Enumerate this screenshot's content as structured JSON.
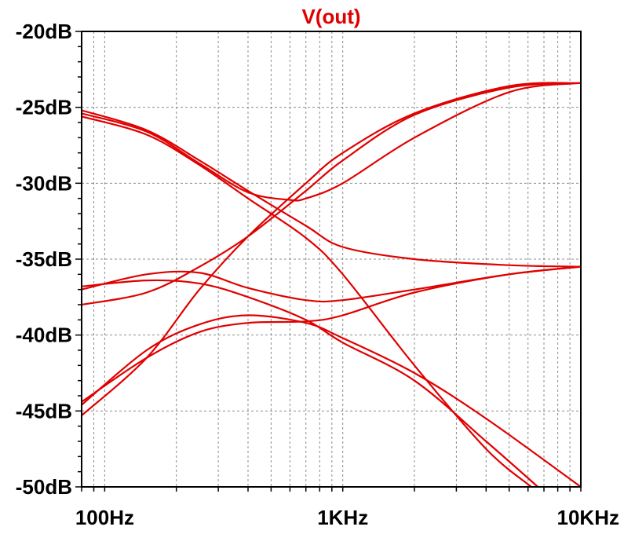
{
  "chart_data": {
    "type": "line",
    "title": "V(out)",
    "xlabel": "",
    "ylabel": "",
    "x_scale": "log",
    "xlim": [
      80,
      10000
    ],
    "ylim": [
      -50,
      -20
    ],
    "grid": true,
    "x_tick_labels": [
      {
        "value": 100,
        "label": "100Hz"
      },
      {
        "value": 1000,
        "label": "1KHz"
      },
      {
        "value": 10000,
        "label": "10KHz"
      }
    ],
    "y_tick_labels": [
      {
        "value": -20,
        "label": "-20dB"
      },
      {
        "value": -25,
        "label": "-25dB"
      },
      {
        "value": -30,
        "label": "-30dB"
      },
      {
        "value": -35,
        "label": "-35dB"
      },
      {
        "value": -40,
        "label": "-40dB"
      },
      {
        "value": -45,
        "label": "-45dB"
      },
      {
        "value": -50,
        "label": "-50dB"
      }
    ],
    "line_color": "#e00000",
    "title_color": "#e00000",
    "series": [
      {
        "points": [
          [
            80,
            -25.2
          ],
          [
            150,
            -26.5
          ],
          [
            250,
            -28.5
          ],
          [
            400,
            -30.5
          ],
          [
            700,
            -32.8
          ],
          [
            1000,
            -34.2
          ],
          [
            2000,
            -35.0
          ],
          [
            5000,
            -35.4
          ],
          [
            10000,
            -35.5
          ]
        ]
      },
      {
        "points": [
          [
            80,
            -25.4
          ],
          [
            150,
            -26.6
          ],
          [
            250,
            -28.7
          ],
          [
            400,
            -30.6
          ],
          [
            600,
            -31.1
          ],
          [
            700,
            -31.0
          ],
          [
            1000,
            -30.0
          ],
          [
            2000,
            -27.0
          ],
          [
            5000,
            -24.0
          ],
          [
            10000,
            -23.4
          ]
        ]
      },
      {
        "points": [
          [
            80,
            -25.6
          ],
          [
            150,
            -26.8
          ],
          [
            250,
            -28.8
          ],
          [
            400,
            -31.0
          ],
          [
            700,
            -33.6
          ],
          [
            1000,
            -36.0
          ],
          [
            2000,
            -42.0
          ],
          [
            4000,
            -47.5
          ],
          [
            6200,
            -50.0
          ]
        ]
      },
      {
        "points": [
          [
            80,
            -37.0
          ],
          [
            150,
            -36.0
          ],
          [
            250,
            -35.9
          ],
          [
            400,
            -36.9
          ],
          [
            700,
            -37.7
          ],
          [
            1000,
            -37.7
          ],
          [
            2000,
            -37.0
          ],
          [
            5000,
            -36.0
          ],
          [
            10000,
            -35.5
          ]
        ]
      },
      {
        "points": [
          [
            80,
            -36.8
          ],
          [
            150,
            -36.4
          ],
          [
            250,
            -36.6
          ],
          [
            400,
            -37.5
          ],
          [
            700,
            -39.0
          ],
          [
            1000,
            -40.5
          ],
          [
            2000,
            -43.0
          ],
          [
            4000,
            -47.0
          ],
          [
            6600,
            -50.0
          ]
        ]
      },
      {
        "points": [
          [
            80,
            -38.0
          ],
          [
            150,
            -37.2
          ],
          [
            250,
            -35.5
          ],
          [
            400,
            -33.5
          ],
          [
            700,
            -30.5
          ],
          [
            1000,
            -28.5
          ],
          [
            2000,
            -25.5
          ],
          [
            5000,
            -23.7
          ],
          [
            10000,
            -23.4
          ]
        ]
      },
      {
        "points": [
          [
            80,
            -44.4
          ],
          [
            150,
            -41.5
          ],
          [
            250,
            -39.8
          ],
          [
            400,
            -39.2
          ],
          [
            700,
            -39.1
          ],
          [
            1000,
            -38.7
          ],
          [
            2000,
            -37.2
          ],
          [
            5000,
            -36.0
          ],
          [
            10000,
            -35.5
          ]
        ]
      },
      {
        "points": [
          [
            80,
            -44.6
          ],
          [
            150,
            -41.0
          ],
          [
            250,
            -39.3
          ],
          [
            400,
            -38.7
          ],
          [
            700,
            -39.2
          ],
          [
            1000,
            -40.2
          ],
          [
            2000,
            -42.5
          ],
          [
            4000,
            -45.5
          ],
          [
            10000,
            -50.0
          ]
        ]
      },
      {
        "points": [
          [
            80,
            -45.3
          ],
          [
            150,
            -41.5
          ],
          [
            250,
            -37.0
          ],
          [
            400,
            -33.5
          ],
          [
            700,
            -30.0
          ],
          [
            1000,
            -28.0
          ],
          [
            2000,
            -25.4
          ],
          [
            5000,
            -23.6
          ],
          [
            10000,
            -23.4
          ]
        ]
      }
    ]
  }
}
